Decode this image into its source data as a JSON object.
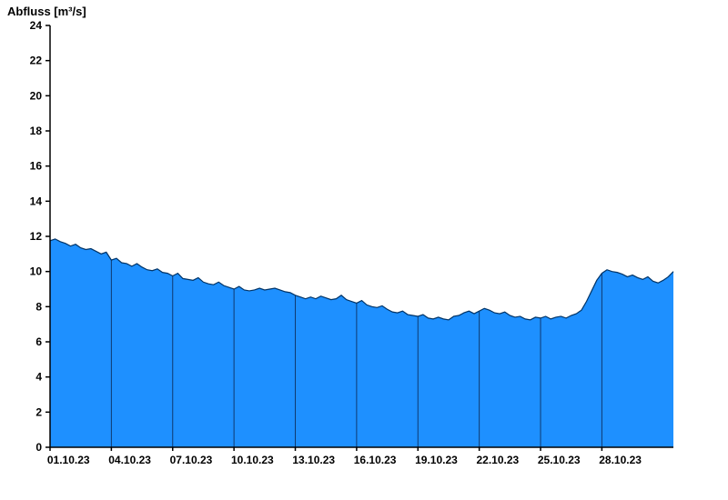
{
  "title": "Abfluss [m³/s]",
  "chart_data": {
    "type": "area",
    "title": "Abfluss [m³/s]",
    "ylabel": "Abfluss [m³/s]",
    "xlabel": "",
    "ylim": [
      0,
      24
    ],
    "xlim": [
      0,
      30.5
    ],
    "x_unit": "days since 01.10.23 00:00",
    "grid": {
      "vertical": true,
      "horizontal": false
    },
    "legend": "none",
    "colors": {
      "fill": "#1E90FF",
      "line": "#003366",
      "gridline": "#0d2b57",
      "axis": "#000000",
      "background": "#ffffff"
    },
    "y_ticks": [
      0,
      2,
      4,
      6,
      8,
      10,
      12,
      14,
      16,
      18,
      20,
      22,
      24
    ],
    "x_ticks": [
      {
        "day": 0,
        "label": "01.10.23"
      },
      {
        "day": 3,
        "label": "04.10.23"
      },
      {
        "day": 6,
        "label": "07.10.23"
      },
      {
        "day": 9,
        "label": "10.10.23"
      },
      {
        "day": 12,
        "label": "13.10.23"
      },
      {
        "day": 15,
        "label": "16.10.23"
      },
      {
        "day": 18,
        "label": "19.10.23"
      },
      {
        "day": 21,
        "label": "22.10.23"
      },
      {
        "day": 24,
        "label": "25.10.23"
      },
      {
        "day": 27,
        "label": "28.10.23"
      }
    ],
    "series": [
      {
        "name": "Abfluss",
        "points": [
          [
            0,
            11.75
          ],
          [
            0.25,
            11.85
          ],
          [
            0.5,
            11.7
          ],
          [
            0.75,
            11.6
          ],
          [
            1,
            11.45
          ],
          [
            1.25,
            11.55
          ],
          [
            1.5,
            11.35
          ],
          [
            1.75,
            11.25
          ],
          [
            2,
            11.3
          ],
          [
            2.25,
            11.15
          ],
          [
            2.5,
            11.0
          ],
          [
            2.75,
            11.1
          ],
          [
            3,
            10.65
          ],
          [
            3.25,
            10.75
          ],
          [
            3.5,
            10.5
          ],
          [
            3.75,
            10.45
          ],
          [
            4,
            10.3
          ],
          [
            4.25,
            10.45
          ],
          [
            4.5,
            10.25
          ],
          [
            4.75,
            10.1
          ],
          [
            5,
            10.05
          ],
          [
            5.25,
            10.15
          ],
          [
            5.5,
            9.95
          ],
          [
            5.75,
            9.9
          ],
          [
            6,
            9.75
          ],
          [
            6.25,
            9.9
          ],
          [
            6.5,
            9.6
          ],
          [
            6.75,
            9.55
          ],
          [
            7,
            9.5
          ],
          [
            7.25,
            9.65
          ],
          [
            7.5,
            9.4
          ],
          [
            7.75,
            9.3
          ],
          [
            8,
            9.25
          ],
          [
            8.25,
            9.4
          ],
          [
            8.5,
            9.2
          ],
          [
            8.75,
            9.1
          ],
          [
            9,
            9.0
          ],
          [
            9.25,
            9.15
          ],
          [
            9.5,
            8.95
          ],
          [
            9.75,
            8.9
          ],
          [
            10,
            8.95
          ],
          [
            10.25,
            9.05
          ],
          [
            10.5,
            8.95
          ],
          [
            10.75,
            9.0
          ],
          [
            11,
            9.05
          ],
          [
            11.25,
            8.95
          ],
          [
            11.5,
            8.85
          ],
          [
            11.75,
            8.8
          ],
          [
            12,
            8.65
          ],
          [
            12.25,
            8.55
          ],
          [
            12.5,
            8.45
          ],
          [
            12.75,
            8.55
          ],
          [
            13,
            8.45
          ],
          [
            13.25,
            8.6
          ],
          [
            13.5,
            8.5
          ],
          [
            13.75,
            8.4
          ],
          [
            14,
            8.45
          ],
          [
            14.25,
            8.65
          ],
          [
            14.5,
            8.4
          ],
          [
            14.75,
            8.3
          ],
          [
            15,
            8.2
          ],
          [
            15.25,
            8.35
          ],
          [
            15.5,
            8.1
          ],
          [
            15.75,
            8.0
          ],
          [
            16,
            7.95
          ],
          [
            16.25,
            8.05
          ],
          [
            16.5,
            7.85
          ],
          [
            16.75,
            7.7
          ],
          [
            17,
            7.65
          ],
          [
            17.25,
            7.75
          ],
          [
            17.5,
            7.55
          ],
          [
            17.75,
            7.5
          ],
          [
            18,
            7.45
          ],
          [
            18.25,
            7.55
          ],
          [
            18.5,
            7.35
          ],
          [
            18.75,
            7.3
          ],
          [
            19,
            7.4
          ],
          [
            19.25,
            7.3
          ],
          [
            19.5,
            7.25
          ],
          [
            19.75,
            7.45
          ],
          [
            20,
            7.5
          ],
          [
            20.25,
            7.65
          ],
          [
            20.5,
            7.75
          ],
          [
            20.75,
            7.6
          ],
          [
            21,
            7.75
          ],
          [
            21.25,
            7.9
          ],
          [
            21.5,
            7.8
          ],
          [
            21.75,
            7.65
          ],
          [
            22,
            7.6
          ],
          [
            22.25,
            7.7
          ],
          [
            22.5,
            7.5
          ],
          [
            22.75,
            7.4
          ],
          [
            23,
            7.45
          ],
          [
            23.25,
            7.3
          ],
          [
            23.5,
            7.25
          ],
          [
            23.75,
            7.4
          ],
          [
            24,
            7.35
          ],
          [
            24.25,
            7.45
          ],
          [
            24.5,
            7.3
          ],
          [
            24.75,
            7.4
          ],
          [
            25,
            7.45
          ],
          [
            25.25,
            7.35
          ],
          [
            25.5,
            7.5
          ],
          [
            25.75,
            7.6
          ],
          [
            26,
            7.8
          ],
          [
            26.25,
            8.3
          ],
          [
            26.5,
            8.9
          ],
          [
            26.75,
            9.5
          ],
          [
            27,
            9.9
          ],
          [
            27.25,
            10.1
          ],
          [
            27.5,
            10.0
          ],
          [
            27.75,
            9.95
          ],
          [
            28,
            9.85
          ],
          [
            28.25,
            9.7
          ],
          [
            28.5,
            9.8
          ],
          [
            28.75,
            9.65
          ],
          [
            29,
            9.55
          ],
          [
            29.25,
            9.7
          ],
          [
            29.5,
            9.45
          ],
          [
            29.75,
            9.35
          ],
          [
            30,
            9.5
          ],
          [
            30.25,
            9.7
          ],
          [
            30.5,
            10.0
          ]
        ]
      }
    ]
  }
}
